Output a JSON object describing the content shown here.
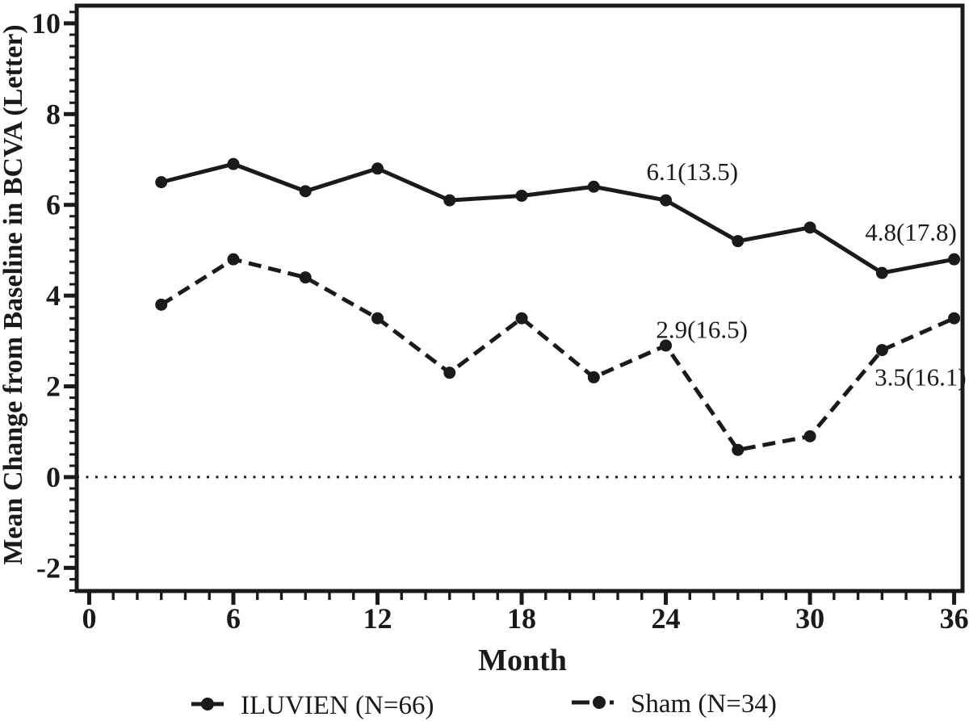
{
  "figure": {
    "background": "#ffffff",
    "ink_color": "#1a1a1a"
  },
  "chart_data": {
    "type": "line",
    "title": "",
    "xlabel": "Month",
    "ylabel": "Mean Change from Baseline in BCVA (Letter)",
    "x": [
      3,
      6,
      9,
      12,
      15,
      18,
      21,
      24,
      27,
      30,
      33,
      36
    ],
    "series": [
      {
        "name": "ILUVIEN (N=66)",
        "line_style": "solid",
        "marker": "filled-circle",
        "values": [
          6.5,
          6.9,
          6.3,
          6.8,
          6.1,
          6.2,
          6.4,
          6.1,
          5.2,
          5.5,
          4.5,
          4.8
        ]
      },
      {
        "name": "Sham (N=34)",
        "line_style": "dashed",
        "marker": "filled-circle",
        "values": [
          3.8,
          4.8,
          4.4,
          3.5,
          2.3,
          3.5,
          2.2,
          2.9,
          0.6,
          0.9,
          2.8,
          3.5
        ]
      }
    ],
    "x_ticks_major": [
      0,
      6,
      12,
      18,
      24,
      30,
      36
    ],
    "x_minor_step": 1,
    "x_minor_range": [
      0,
      36
    ],
    "y_ticks_major": [
      -2,
      0,
      2,
      4,
      6,
      8,
      10
    ],
    "y_minor_step": 0.25,
    "xlim": [
      -0.52,
      36.35
    ],
    "ylim": [
      -2.51,
      10.39
    ],
    "grid": "off",
    "reference_line": {
      "y": 0,
      "style": "dotted"
    },
    "annotations": [
      {
        "text": "6.1(13.5)",
        "month": 25.1,
        "value": 6.74,
        "series": "ILUVIEN (N=66)"
      },
      {
        "text": "4.8(17.8)",
        "month": 34.2,
        "value": 5.41,
        "series": "ILUVIEN (N=66)"
      },
      {
        "text": "2.9(16.5)",
        "month": 25.5,
        "value": 3.26,
        "series": "Sham (N=34)"
      },
      {
        "text": "3.5(16.1)",
        "month": 34.6,
        "value": 2.21,
        "series": "Sham (N=34)"
      }
    ],
    "legend_position": "bottom"
  }
}
